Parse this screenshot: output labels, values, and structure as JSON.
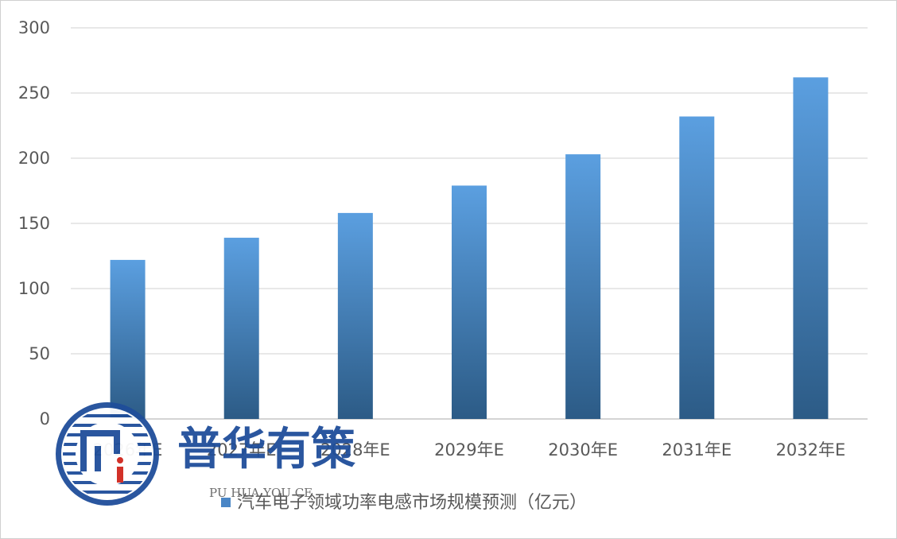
{
  "chart_data": {
    "type": "bar",
    "categories": [
      "2026年E",
      "2027年E",
      "2028年E",
      "2029年E",
      "2030年E",
      "2031年E",
      "2032年E"
    ],
    "series": [
      {
        "name": "汽车电子领域功率电感市场规模预测（亿元）",
        "values": [
          122,
          139,
          158,
          179,
          203,
          232,
          262
        ]
      }
    ],
    "ylim": [
      0,
      300
    ],
    "yticks": [
      0,
      50,
      100,
      150,
      200,
      250,
      300
    ],
    "grid": true,
    "legend": "bottom",
    "colors": {
      "bar_top": "#5b9fe0",
      "bar_bottom": "#2c5b86",
      "grid": "#d9d9d9"
    }
  },
  "watermark": {
    "name": "普华有策",
    "subtitle": "PU HUA YOU CE"
  }
}
